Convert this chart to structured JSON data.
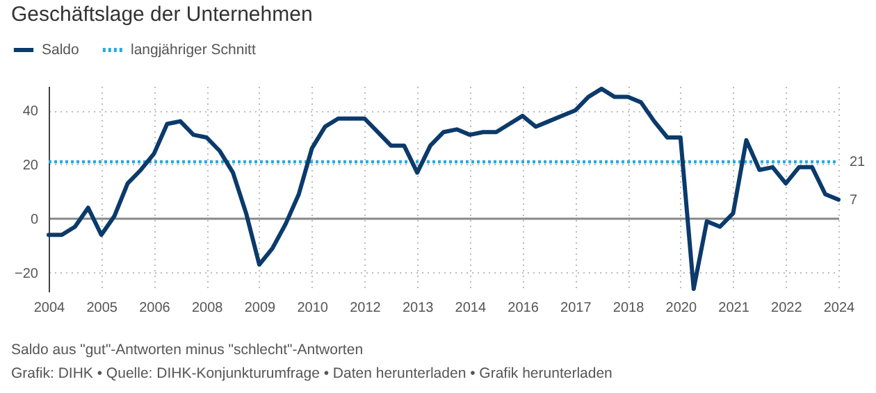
{
  "chart_data": {
    "type": "line",
    "title": "Geschäftslage der Unternehmen",
    "categories": [
      "2004",
      null,
      null,
      null,
      "2005",
      null,
      null,
      null,
      "2006",
      null,
      null,
      null,
      "2008",
      null,
      null,
      null,
      "2009",
      null,
      null,
      null,
      "2010",
      null,
      null,
      null,
      "2012",
      null,
      null,
      null,
      "2013",
      null,
      null,
      null,
      "2014",
      null,
      null,
      null,
      "2016",
      null,
      null,
      null,
      "2017",
      null,
      null,
      null,
      "2018",
      null,
      null,
      null,
      "2020",
      null,
      null,
      null,
      "2021",
      null,
      null,
      null,
      "2022",
      null,
      null,
      null,
      "2024"
    ],
    "series": [
      {
        "name": "Saldo",
        "color": "#0b3a6b",
        "values": [
          -6,
          -6,
          -3,
          4,
          -6,
          1,
          13,
          18,
          24,
          35,
          36,
          31,
          30,
          25,
          17,
          2,
          -17,
          -11,
          -2,
          9,
          26,
          34,
          37,
          37,
          37,
          32,
          27,
          27,
          17,
          27,
          32,
          33,
          31,
          32,
          32,
          35,
          38,
          34,
          36,
          38,
          40,
          45,
          48,
          45,
          45,
          43,
          36,
          30,
          30,
          -26,
          -1,
          -3,
          2,
          29,
          18,
          19,
          13,
          19,
          19,
          9,
          7
        ],
        "value_labels": [
          null,
          null,
          null,
          null,
          null,
          null,
          null,
          null,
          null,
          null,
          null,
          null,
          null,
          null,
          null,
          null,
          null,
          null,
          null,
          null,
          null,
          null,
          null,
          null,
          null,
          null,
          null,
          null,
          null,
          null,
          null,
          null,
          null,
          null,
          null,
          null,
          null,
          null,
          null,
          null,
          null,
          null,
          null,
          null,
          null,
          null,
          null,
          null,
          null,
          null,
          null,
          null,
          null,
          null,
          null,
          null,
          null,
          null,
          null,
          null,
          "7"
        ]
      },
      {
        "name": "langjähriger Schnitt",
        "color": "#29a9e0",
        "line_style": "dotted",
        "values": [
          21,
          21,
          21,
          21,
          21,
          21,
          21,
          21,
          21,
          21,
          21,
          21,
          21,
          21,
          21,
          21,
          21,
          21,
          21,
          21,
          21,
          21,
          21,
          21,
          21,
          21,
          21,
          21,
          21,
          21,
          21,
          21,
          21,
          21,
          21,
          21,
          21,
          21,
          21,
          21,
          21,
          21,
          21,
          21,
          21,
          21,
          21,
          21,
          21,
          21,
          21,
          21,
          21,
          21,
          21,
          21,
          21,
          21,
          21,
          21,
          21
        ],
        "value_labels": [
          null,
          null,
          null,
          null,
          null,
          null,
          null,
          null,
          null,
          null,
          null,
          null,
          null,
          null,
          null,
          null,
          null,
          null,
          null,
          null,
          null,
          null,
          null,
          null,
          null,
          null,
          null,
          null,
          null,
          null,
          null,
          null,
          null,
          null,
          null,
          null,
          null,
          null,
          null,
          null,
          null,
          null,
          null,
          null,
          null,
          null,
          null,
          null,
          null,
          null,
          null,
          null,
          null,
          null,
          null,
          null,
          null,
          null,
          null,
          null,
          "21"
        ]
      }
    ],
    "ylim": [
      -27,
      49
    ],
    "yticks": [
      -20,
      0,
      20,
      40
    ],
    "grid": true,
    "legend": "top left",
    "marker": "none",
    "line_style": "solid",
    "annotations": [
      "Saldo aus \"gut\"-Antworten minus \"schlecht\"-Antworten",
      "Grafik: DIHK • Quelle: DIHK-Konjunkturumfrage • Daten herunterladen • Grafik herunterladen"
    ]
  }
}
